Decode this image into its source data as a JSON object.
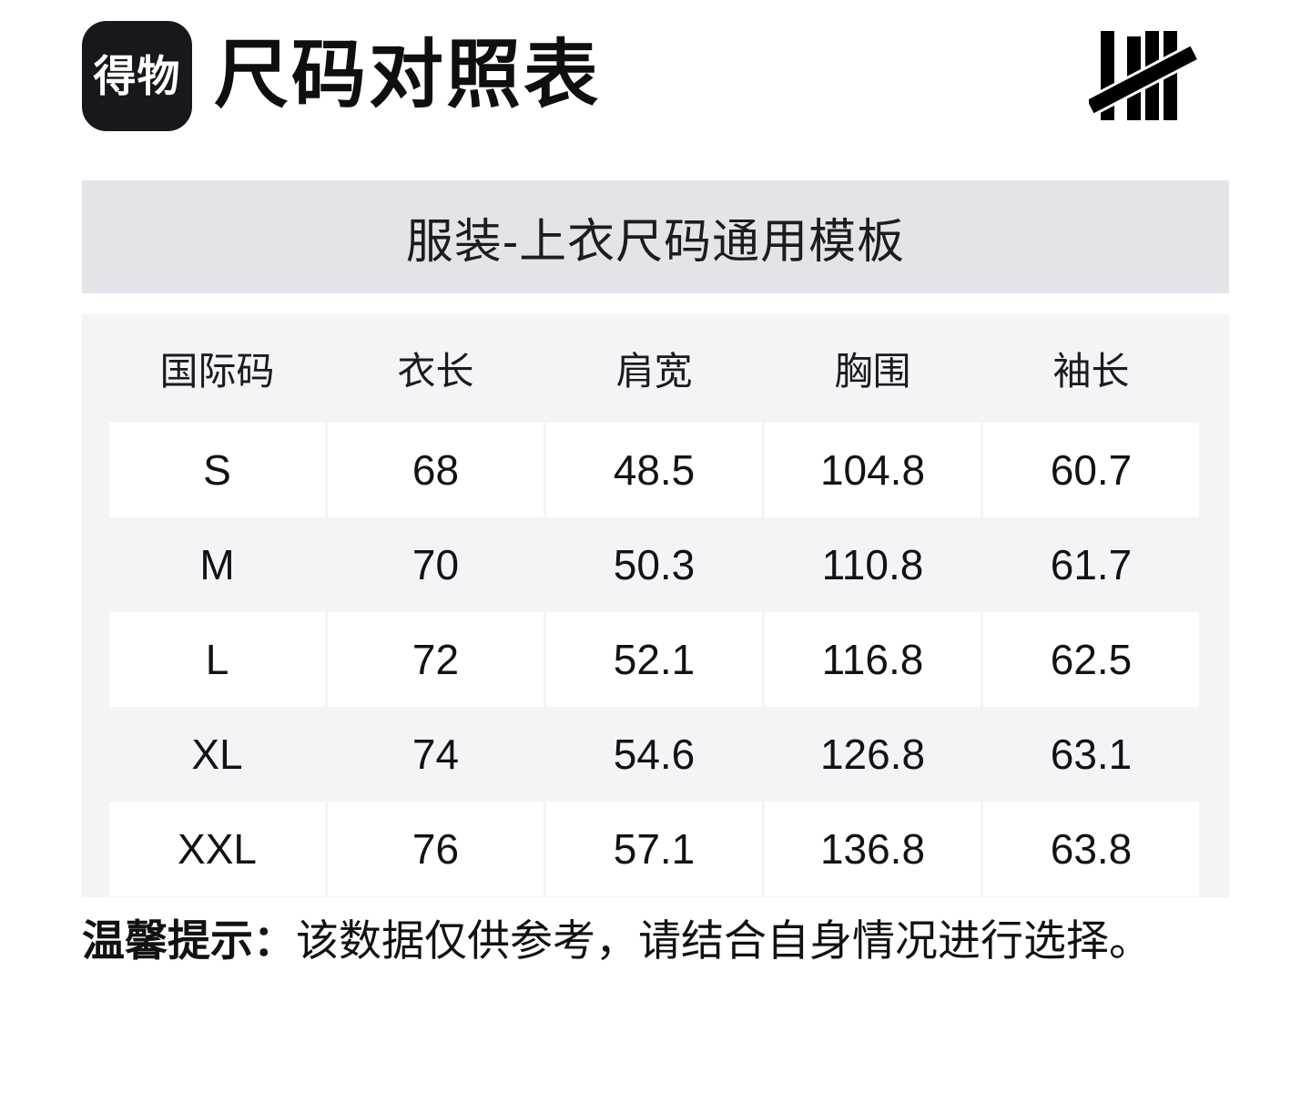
{
  "header": {
    "logo_text": "得物",
    "title": "尺码对照表"
  },
  "banner": {
    "text": "服装-上衣尺码通用模板"
  },
  "size_table": {
    "columns": [
      "国际码",
      "衣长",
      "肩宽",
      "胸围",
      "袖长"
    ],
    "rows": [
      {
        "size": "S",
        "values": [
          "68",
          "48.5",
          "104.8",
          "60.7"
        ]
      },
      {
        "size": "M",
        "values": [
          "70",
          "50.3",
          "110.8",
          "61.7"
        ]
      },
      {
        "size": "L",
        "values": [
          "72",
          "52.1",
          "116.8",
          "62.5"
        ]
      },
      {
        "size": "XL",
        "values": [
          "74",
          "54.6",
          "126.8",
          "63.1"
        ]
      },
      {
        "size": "XXL",
        "values": [
          "76",
          "57.1",
          "136.8",
          "63.8"
        ]
      }
    ]
  },
  "note": {
    "prefix": "温馨提示：",
    "body": "该数据仅供参考，请结合自身情况进行选择。"
  },
  "colors": {
    "brand_black": "#17171c",
    "banner_bg": "#e4e3e9",
    "table_bg": "#f4f4f7",
    "cell_bg": "#ffffff",
    "text": "#121214"
  }
}
